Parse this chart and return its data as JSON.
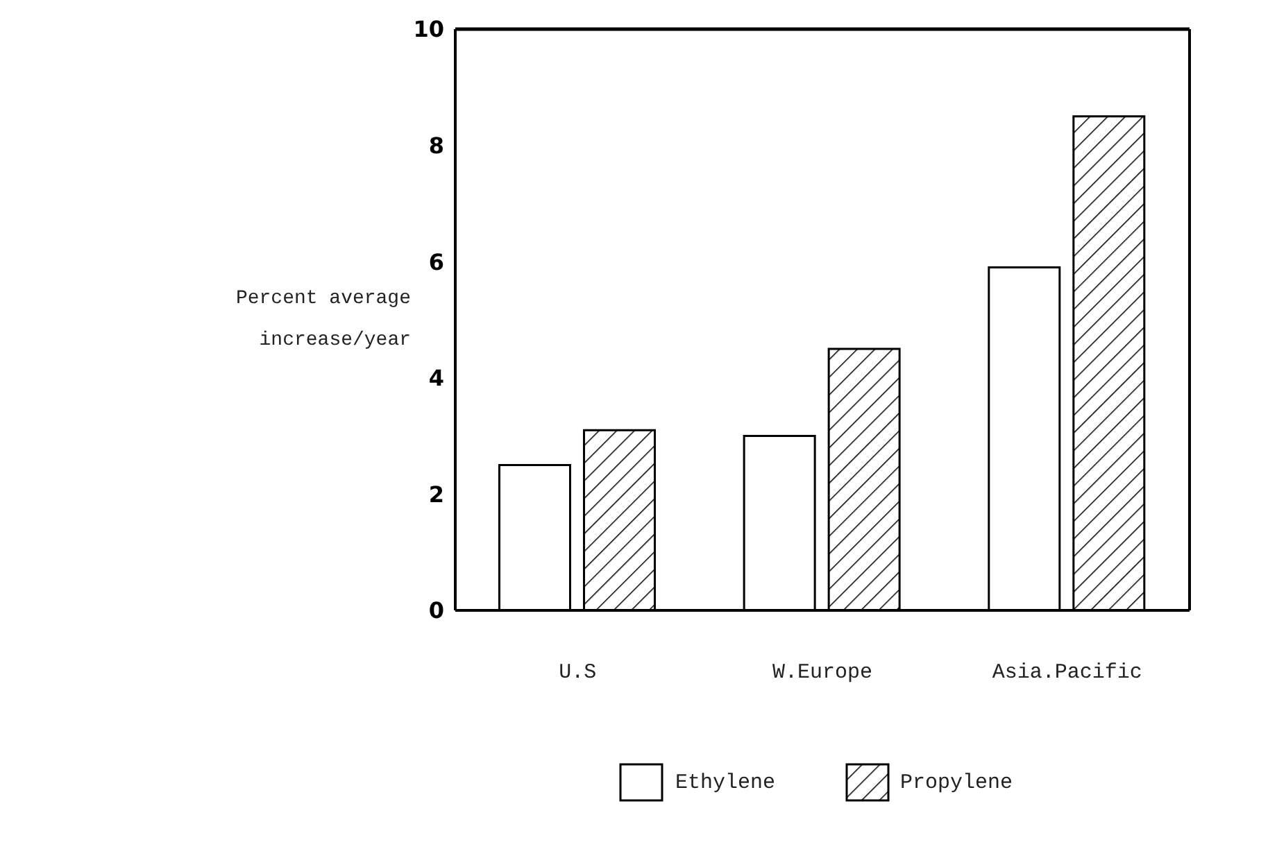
{
  "chart_data": {
    "type": "bar",
    "ylabel": "Percent average increase/year",
    "categories": [
      "U.S",
      "W.Europe",
      "Asia.Pacific"
    ],
    "series": [
      {
        "name": "Ethylene",
        "color": "#ffffff",
        "values": [
          2.5,
          3.0,
          5.9
        ]
      },
      {
        "name": "Propylene",
        "color": "#000000",
        "values": [
          3.1,
          4.5,
          8.5
        ]
      }
    ],
    "ylim": [
      0,
      10
    ],
    "yticks": [
      0,
      2,
      4,
      6,
      8,
      10
    ],
    "grid": false,
    "legend": "bottom"
  }
}
